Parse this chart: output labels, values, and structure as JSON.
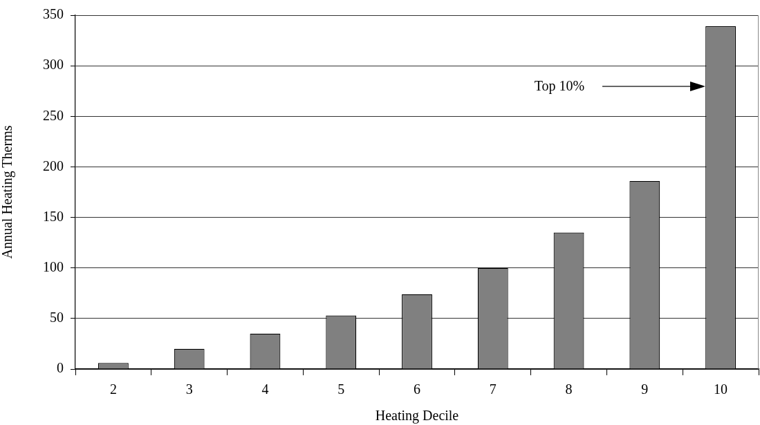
{
  "chart_data": {
    "type": "bar",
    "xlabel": "Heating Decile",
    "ylabel": "Annual Heating Therms",
    "categories": [
      "2",
      "3",
      "4",
      "5",
      "6",
      "7",
      "8",
      "9",
      "10"
    ],
    "values": [
      6,
      20,
      35,
      53,
      74,
      100,
      135,
      186,
      339
    ],
    "color": "#808080",
    "ylim": [
      0,
      350
    ],
    "yticks": [
      0,
      50,
      100,
      150,
      200,
      250,
      300,
      350
    ],
    "grid": "y",
    "annotations": [
      "Top 10%"
    ]
  }
}
